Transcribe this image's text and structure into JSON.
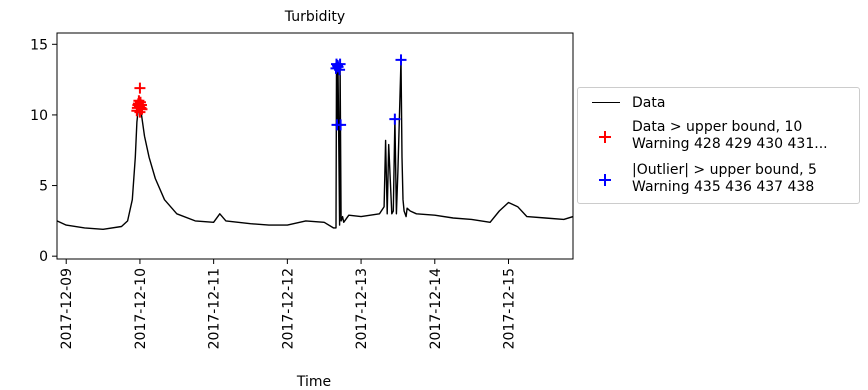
{
  "chart_data": {
    "type": "line",
    "title": "Turbidity",
    "xlabel": "Time",
    "ylabel": "",
    "xlim": [
      "2017-12-08T21:00",
      "2017-12-15T21:00"
    ],
    "ylim": [
      -0.2,
      15.8
    ],
    "y_ticks": [
      "0",
      "5",
      "10",
      "15"
    ],
    "x_ticks": [
      "2017-12-09",
      "2017-12-10",
      "2017-12-11",
      "2017-12-12",
      "2017-12-13",
      "2017-12-14",
      "2017-12-15"
    ],
    "grid": false,
    "legend_position": "right, outside plot",
    "series": [
      {
        "name": "Data",
        "color": "#000000",
        "marker": "none",
        "x": [
          "2017-12-08T21:00",
          "2017-12-09T00:00",
          "2017-12-09T06:00",
          "2017-12-09T12:00",
          "2017-12-09T18:00",
          "2017-12-09T20:00",
          "2017-12-09T21:30",
          "2017-12-09T22:30",
          "2017-12-09T23:00",
          "2017-12-09T23:30",
          "2017-12-10T00:00",
          "2017-12-10T00:30",
          "2017-12-10T01:30",
          "2017-12-10T03:00",
          "2017-12-10T05:00",
          "2017-12-10T08:00",
          "2017-12-10T12:00",
          "2017-12-10T18:00",
          "2017-12-11T00:00",
          "2017-12-11T02:00",
          "2017-12-11T04:00",
          "2017-12-11T12:00",
          "2017-12-11T18:00",
          "2017-12-12T00:00",
          "2017-12-12T06:00",
          "2017-12-12T12:00",
          "2017-12-12T15:00",
          "2017-12-12T15:30",
          "2017-12-12T15:50",
          "2017-12-12T16:00",
          "2017-12-12T16:10",
          "2017-12-12T16:30",
          "2017-12-12T17:00",
          "2017-12-12T17:10",
          "2017-12-12T17:30",
          "2017-12-12T18:00",
          "2017-12-12T18:20",
          "2017-12-12T20:00",
          "2017-12-13T00:00",
          "2017-12-13T06:00",
          "2017-12-13T07:30",
          "2017-12-13T08:00",
          "2017-12-13T08:30",
          "2017-12-13T09:00",
          "2017-12-13T10:00",
          "2017-12-13T10:30",
          "2017-12-13T11:00",
          "2017-12-13T11:30",
          "2017-12-13T12:00",
          "2017-12-13T13:00",
          "2017-12-13T13:20",
          "2017-12-13T13:40",
          "2017-12-13T14:00",
          "2017-12-13T14:20",
          "2017-12-13T14:40",
          "2017-12-13T15:00",
          "2017-12-13T16:00",
          "2017-12-13T18:00",
          "2017-12-14T00:00",
          "2017-12-14T06:00",
          "2017-12-14T12:00",
          "2017-12-14T18:00",
          "2017-12-14T21:00",
          "2017-12-15T00:00",
          "2017-12-15T03:00",
          "2017-12-15T06:00",
          "2017-12-15T12:00",
          "2017-12-15T18:00",
          "2017-12-15T21:00"
        ],
        "y": [
          2.5,
          2.2,
          2.0,
          1.9,
          2.1,
          2.5,
          4.0,
          7.0,
          9.5,
          10.5,
          10.8,
          10.0,
          8.5,
          7.0,
          5.5,
          4.0,
          3.0,
          2.5,
          2.4,
          3.0,
          2.5,
          2.3,
          2.2,
          2.2,
          2.5,
          2.4,
          2.0,
          2.0,
          2.0,
          13.6,
          9.3,
          13.4,
          2.2,
          13.6,
          2.5,
          2.8,
          2.4,
          2.9,
          2.8,
          3.0,
          3.5,
          8.2,
          3.0,
          7.9,
          3.0,
          3.2,
          9.7,
          3.0,
          6.0,
          13.9,
          7.0,
          4.0,
          3.2,
          3.0,
          2.8,
          3.4,
          3.2,
          3.0,
          2.9,
          2.7,
          2.6,
          2.4,
          3.2,
          3.8,
          3.5,
          2.8,
          2.7,
          2.6,
          2.8
        ]
      },
      {
        "name": "Data > upper bound, 10",
        "name_line2": "Warning 428 429 430 431...",
        "color": "#ff0000",
        "marker": "+",
        "x": [
          "2017-12-09T23:00",
          "2017-12-09T23:20",
          "2017-12-09T23:40",
          "2017-12-10T00:00",
          "2017-12-10T00:20",
          "2017-12-10T00:40",
          "2017-12-10T00:00",
          "2017-12-09T23:30",
          "2017-12-10T00:10",
          "2017-12-09T23:50",
          "2017-12-10T00:30",
          "2017-12-09T23:10"
        ],
        "y": [
          10.3,
          10.7,
          11.0,
          11.9,
          10.5,
          10.4,
          10.2,
          10.8,
          10.9,
          10.6,
          10.7,
          10.5
        ]
      },
      {
        "name": "|Outlier| > upper bound, 5",
        "name_line2": "Warning 435 436 437 438",
        "color": "#0000ff",
        "marker": "+",
        "x": [
          "2017-12-12T15:50",
          "2017-12-12T16:00",
          "2017-12-12T16:10",
          "2017-12-12T16:20",
          "2017-12-12T16:30",
          "2017-12-12T17:00",
          "2017-12-12T17:10",
          "2017-12-12T17:20",
          "2017-12-13T11:00",
          "2017-12-13T13:00"
        ],
        "y": [
          13.3,
          13.6,
          9.3,
          13.5,
          13.4,
          13.2,
          13.6,
          9.3,
          9.7,
          13.9
        ]
      }
    ]
  }
}
